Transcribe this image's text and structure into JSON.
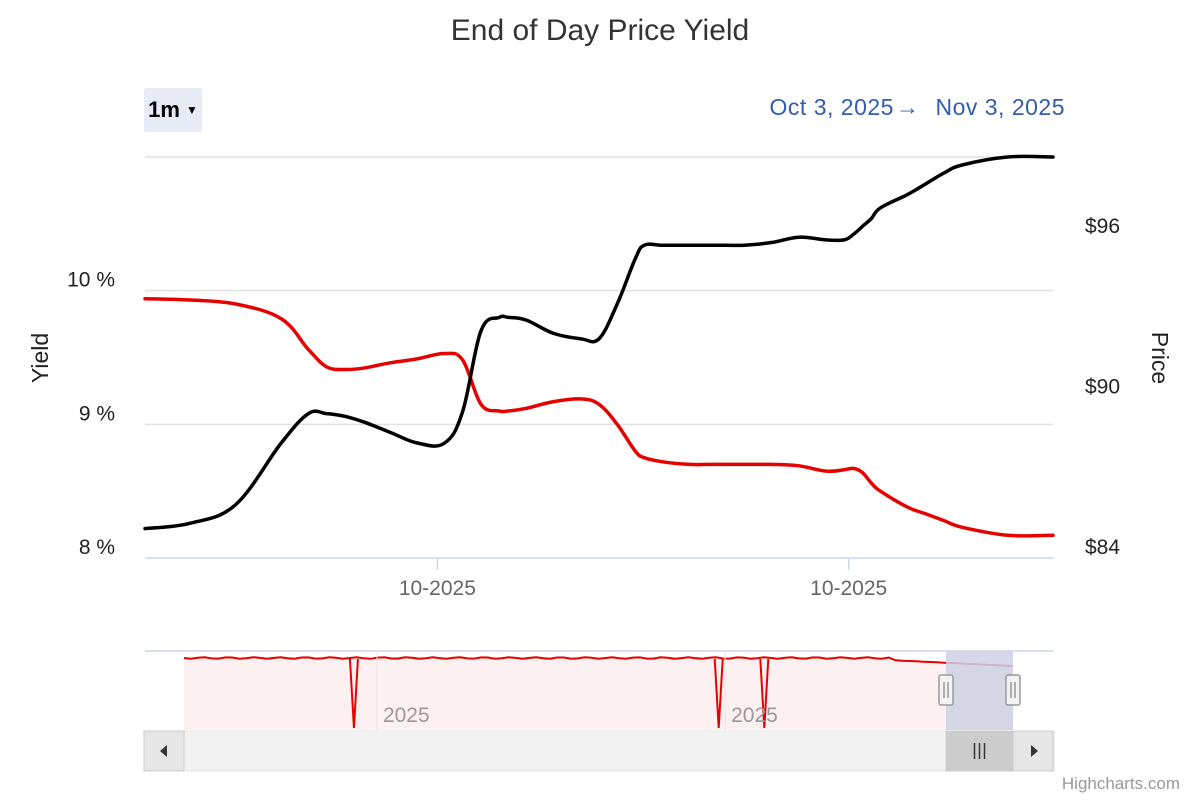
{
  "header": {
    "title": "End of Day Price Yield",
    "range_button": "1m",
    "date_from": "Oct 3, 2025",
    "date_to": "Nov 3, 2025",
    "arrow": "→"
  },
  "credits": "Highcharts.com",
  "colors": {
    "yield_series": "#e60000",
    "price_series": "#000000",
    "grid": "#e0e0e0",
    "navigator_mask": "#cdd1e4",
    "navigator_fill": "#fdf0f0",
    "scrollbar_bg": "#f2f2f2",
    "accent_link": "#335cad"
  },
  "chart_data": {
    "type": "line",
    "title": "End of Day Price Yield",
    "x_tick_labels": [
      "10-2025",
      "10-2025"
    ],
    "y_left": {
      "label": "Yield",
      "ticks": [
        "8 %",
        "9 %",
        "10 %"
      ],
      "range": [
        8,
        11
      ]
    },
    "y_right": {
      "label": "Price",
      "ticks": [
        "$84",
        "$90",
        "$96"
      ],
      "range": [
        84,
        99
      ]
    },
    "series": [
      {
        "name": "Yield",
        "axis": "left",
        "x": [
          0,
          0.05,
          0.1,
          0.15,
          0.18,
          0.2,
          0.22,
          0.24,
          0.27,
          0.3,
          0.33,
          0.35,
          0.37,
          0.39,
          0.4,
          0.42,
          0.45,
          0.48,
          0.5,
          0.52,
          0.54,
          0.55,
          0.57,
          0.6,
          0.62,
          0.64,
          0.66,
          0.69,
          0.72,
          0.75,
          0.77,
          0.78,
          0.79,
          0.8,
          0.81,
          0.84,
          0.86,
          0.88,
          0.9,
          0.95,
          1
        ],
        "values": [
          9.94,
          9.93,
          9.9,
          9.79,
          9.56,
          9.43,
          9.41,
          9.42,
          9.46,
          9.49,
          9.53,
          9.48,
          9.15,
          9.1,
          9.1,
          9.12,
          9.17,
          9.19,
          9.15,
          9.0,
          8.8,
          8.75,
          8.72,
          8.7,
          8.7,
          8.7,
          8.7,
          8.7,
          8.69,
          8.65,
          8.66,
          8.67,
          8.64,
          8.56,
          8.5,
          8.38,
          8.33,
          8.28,
          8.23,
          8.17,
          8.17
        ]
      },
      {
        "name": "Price",
        "axis": "right",
        "x": [
          0,
          0.05,
          0.1,
          0.15,
          0.18,
          0.2,
          0.22,
          0.24,
          0.27,
          0.3,
          0.33,
          0.35,
          0.37,
          0.39,
          0.4,
          0.42,
          0.45,
          0.48,
          0.5,
          0.52,
          0.54,
          0.55,
          0.57,
          0.6,
          0.62,
          0.64,
          0.66,
          0.69,
          0.72,
          0.75,
          0.77,
          0.78,
          0.79,
          0.8,
          0.81,
          0.84,
          0.86,
          0.88,
          0.9,
          0.95,
          1
        ],
        "values": [
          85.1,
          85.3,
          86.0,
          88.3,
          89.4,
          89.4,
          89.3,
          89.1,
          88.7,
          88.3,
          88.3,
          89.5,
          92.5,
          93.0,
          93.0,
          92.9,
          92.4,
          92.2,
          92.2,
          93.5,
          95.2,
          95.7,
          95.7,
          95.7,
          95.7,
          95.7,
          95.7,
          95.8,
          96.0,
          95.9,
          95.9,
          96.1,
          96.4,
          96.7,
          97.1,
          97.6,
          98.0,
          98.4,
          98.7,
          99.0,
          99.0
        ]
      }
    ],
    "navigator": {
      "x_tick_labels": [
        "2025",
        "2025"
      ],
      "series_name": "Yield",
      "selected_range": [
        0.86,
        1.0
      ]
    }
  }
}
